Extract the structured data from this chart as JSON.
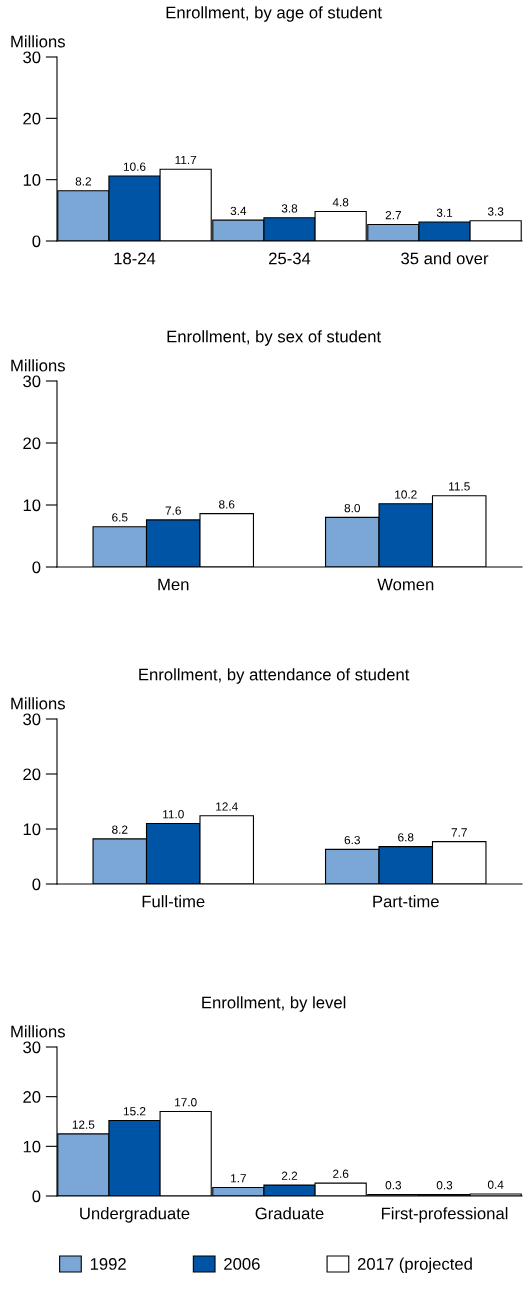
{
  "chart_data": [
    {
      "type": "bar",
      "title": "Enrollment, by age of student",
      "ylabel": "Millions",
      "categories": [
        "18-24",
        "25-34",
        "35 and over"
      ],
      "ylim": [
        0,
        30
      ],
      "yticks": [
        0,
        10,
        20,
        30
      ],
      "series": [
        {
          "color": "#7ba7d6",
          "values": [
            8.2,
            3.4,
            2.7
          ],
          "value_labels": [
            "8.2",
            "3.4",
            "2.7"
          ]
        },
        {
          "color": "#0054a6",
          "values": [
            10.6,
            3.8,
            3.1
          ],
          "value_labels": [
            "10.6",
            "3.8",
            "3.1"
          ]
        },
        {
          "color": "#ffffff",
          "values": [
            11.7,
            4.8,
            3.3
          ],
          "value_labels": [
            "11.7",
            "4.8",
            "3.3"
          ]
        }
      ]
    },
    {
      "type": "bar",
      "title": "Enrollment, by sex of student",
      "ylabel": "Millions",
      "categories": [
        "Men",
        "Women"
      ],
      "ylim": [
        0,
        30
      ],
      "yticks": [
        0,
        10,
        20,
        30
      ],
      "series": [
        {
          "color": "#7ba7d6",
          "values": [
            6.5,
            8.0
          ],
          "value_labels": [
            "6.5",
            "8.0"
          ]
        },
        {
          "color": "#0054a6",
          "values": [
            7.6,
            10.2
          ],
          "value_labels": [
            "7.6",
            "10.2"
          ]
        },
        {
          "color": "#ffffff",
          "values": [
            8.6,
            11.5
          ],
          "value_labels": [
            "8.6",
            "11.5"
          ]
        }
      ]
    },
    {
      "type": "bar",
      "title": "Enrollment, by attendance of student",
      "ylabel": "Millions",
      "categories": [
        "Full-time",
        "Part-time"
      ],
      "ylim": [
        0,
        30
      ],
      "yticks": [
        0,
        10,
        20,
        30
      ],
      "series": [
        {
          "color": "#7ba7d6",
          "values": [
            8.2,
            6.3
          ],
          "value_labels": [
            "8.2",
            "6.3"
          ]
        },
        {
          "color": "#0054a6",
          "values": [
            11.0,
            6.8
          ],
          "value_labels": [
            "11.0",
            "6.8"
          ]
        },
        {
          "color": "#ffffff",
          "values": [
            12.4,
            7.7
          ],
          "value_labels": [
            "12.4",
            "7.7"
          ]
        }
      ]
    },
    {
      "type": "bar",
      "title": "Enrollment, by level",
      "ylabel": "Millions",
      "categories": [
        "Undergraduate",
        "Graduate",
        "First-professional"
      ],
      "ylim": [
        0,
        30
      ],
      "yticks": [
        0,
        10,
        20,
        30
      ],
      "legend": "bottom",
      "series": [
        {
          "name": "1992",
          "color": "#7ba7d6",
          "values": [
            12.5,
            1.7,
            0.3
          ],
          "value_labels": [
            "12.5",
            "1.7",
            "0.3"
          ]
        },
        {
          "name": "2006",
          "color": "#0054a6",
          "values": [
            15.2,
            2.2,
            0.3
          ],
          "value_labels": [
            "15.2",
            "2.2",
            "0.3"
          ]
        },
        {
          "name": "2017 (projected",
          "color": "#ffffff",
          "values": [
            17.0,
            2.6,
            0.4
          ],
          "value_labels": [
            "17.0",
            "2.6",
            "0.4"
          ]
        }
      ]
    }
  ]
}
